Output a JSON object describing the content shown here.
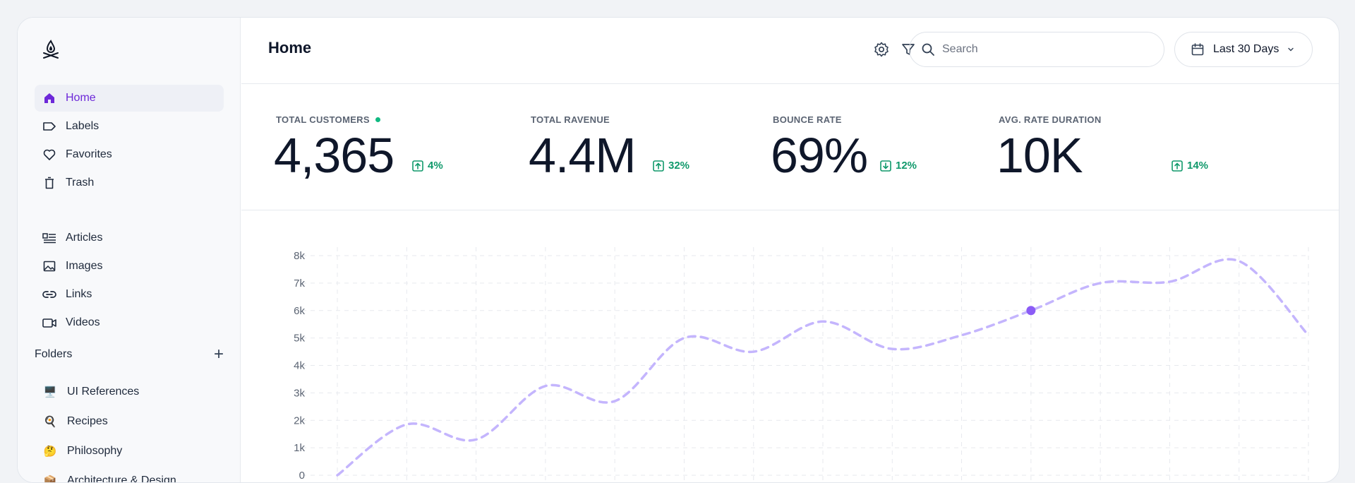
{
  "sidebar": {
    "nav_primary": [
      {
        "label": "Home",
        "icon": "home-icon",
        "active": true
      },
      {
        "label": "Labels",
        "icon": "label-icon"
      },
      {
        "label": "Favorites",
        "icon": "heart-icon"
      },
      {
        "label": "Trash",
        "icon": "trash-icon"
      }
    ],
    "nav_secondary": [
      {
        "label": "Articles",
        "icon": "articles-icon"
      },
      {
        "label": "Images",
        "icon": "image-icon"
      },
      {
        "label": "Links",
        "icon": "link-icon"
      },
      {
        "label": "Videos",
        "icon": "video-icon"
      }
    ],
    "folders_title": "Folders",
    "folders": [
      {
        "label": "UI References",
        "emoji": "🖥️"
      },
      {
        "label": "Recipes",
        "emoji": "🍳"
      },
      {
        "label": "Philosophy",
        "emoji": "🤔"
      },
      {
        "label": "Architecture & Design",
        "emoji": "📦"
      }
    ]
  },
  "header": {
    "title": "Home",
    "search_placeholder": "Search",
    "date_range": "Last 30 Days"
  },
  "stats": [
    {
      "label": "TOTAL CUSTOMERS",
      "value": "4,365",
      "change": "4%",
      "direction": "up",
      "live_dot": true
    },
    {
      "label": "TOTAL RAVENUE",
      "value": "4.4M",
      "change": "32%",
      "direction": "up"
    },
    {
      "label": "BOUNCE RATE",
      "value": "69%",
      "change": "12%",
      "direction": "down"
    },
    {
      "label": "AVG. RATE DURATION",
      "value": "10K",
      "change": "14%",
      "direction": "up"
    }
  ],
  "colors": {
    "accent": "#6d28d9",
    "positive": "#10996b",
    "line": "#c4b5fd",
    "point": "#8b5cf6"
  },
  "chart_data": {
    "type": "line",
    "yticks": [
      "8k",
      "7k",
      "6k",
      "5k",
      "4k",
      "3k",
      "2k",
      "1k",
      "0"
    ],
    "ylim": [
      0,
      8000
    ],
    "grid": true,
    "line_style": "dashed",
    "values": [
      0,
      1850,
      1300,
      3250,
      2700,
      5000,
      4500,
      5600,
      4600,
      5100,
      6000,
      7000,
      7050,
      7800,
      5100
    ],
    "highlight_index": 10
  }
}
